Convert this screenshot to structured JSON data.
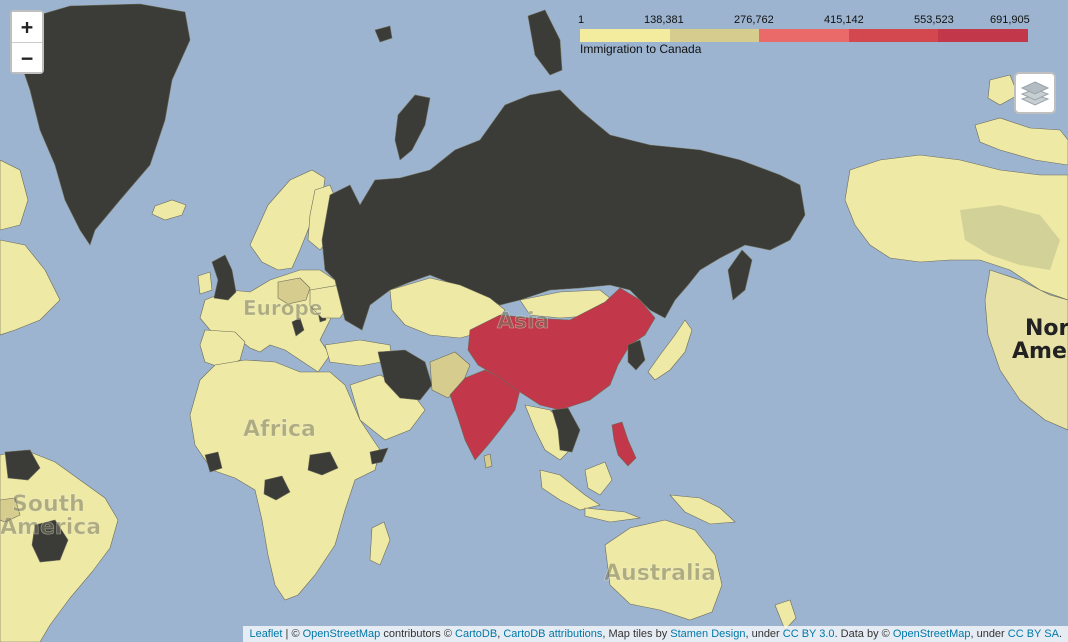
{
  "map": {
    "colors": {
      "ocean": "#9cb4cf",
      "land": "#efe9a6",
      "no_data": "#3b3b37",
      "bin1": "#f2eba8",
      "bin2": "#d6cc8e",
      "bin3": "#e0635d",
      "bin4": "#c43a4a",
      "bin5": "#c3374a"
    },
    "region_labels": {
      "europe": "Europe",
      "asia": "Asia",
      "africa": "Africa",
      "south_america_1": "South",
      "south_america_2": "America",
      "australia": "Australia",
      "north_america_1": "Nor",
      "north_america_2": "Amer"
    }
  },
  "controls": {
    "zoom_in": "+",
    "zoom_out": "−",
    "layers_icon": "layers-icon"
  },
  "legend": {
    "title": "Immigration to Canada",
    "ticks": [
      "1",
      "138,381",
      "276,762",
      "415,142",
      "553,523",
      "691,905"
    ],
    "bin_colors": [
      "#f3ec9f",
      "#d6cc8e",
      "#e96a68",
      "#d3474f",
      "#c3374a"
    ]
  },
  "attribution": {
    "leaflet": "Leaflet",
    "sep": " | © ",
    "osm1": "OpenStreetMap",
    "t1": " contributors © ",
    "cartodb": "CartoDB",
    "t2": ", ",
    "cartodb_attr": "CartoDB attributions",
    "t3": ", Map tiles by ",
    "stamen": "Stamen Design",
    "t4": ", under ",
    "ccby3": "CC BY 3.0",
    "t5": ". Data by © ",
    "osm2": "OpenStreetMap",
    "t6": ", under ",
    "ccbysa": "CC BY SA",
    "t7": "."
  }
}
